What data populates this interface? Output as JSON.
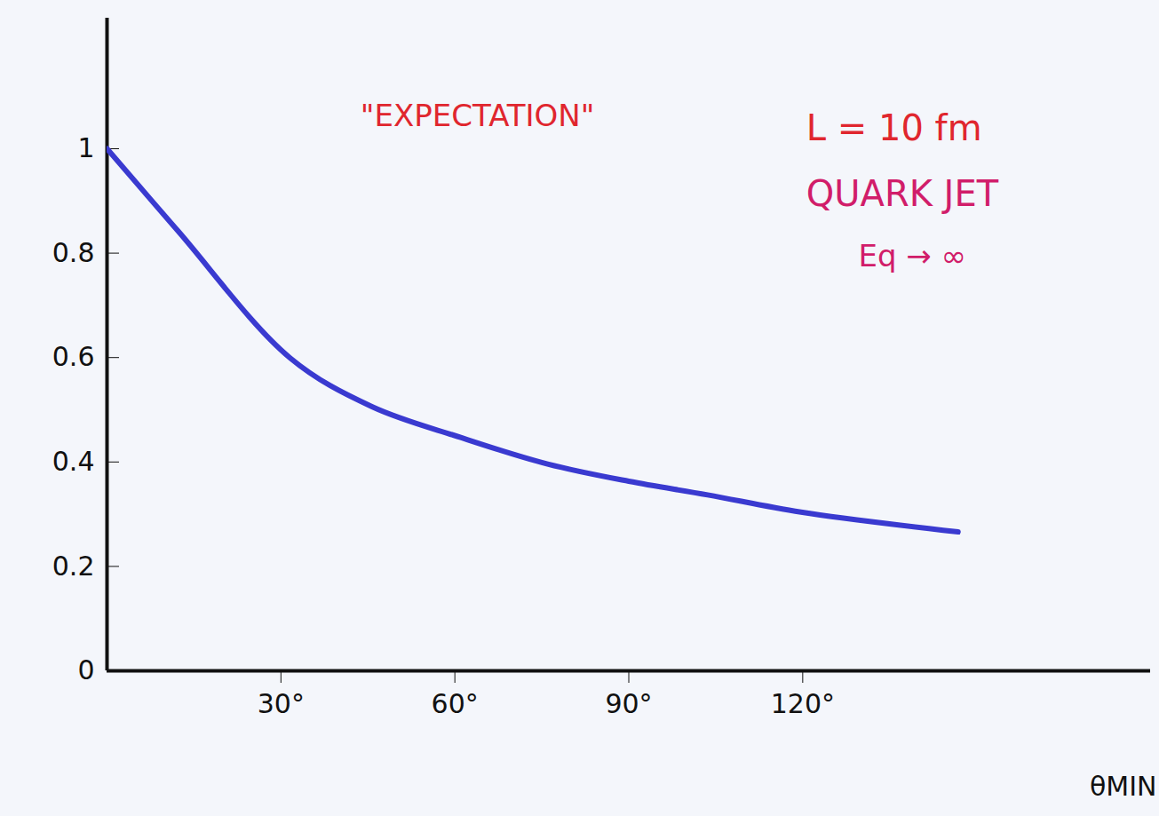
{
  "chart_data": {
    "type": "line",
    "x": [
      0,
      12.2,
      31.5,
      45.7,
      61,
      76,
      90,
      103.6,
      119.7,
      146.8
    ],
    "values": [
      1,
      0.843,
      0.6,
      0.506,
      0.447,
      0.396,
      0.363,
      0.337,
      0.304,
      0.266
    ],
    "color": "#3a3ad0",
    "xlabel": "θMIN",
    "xlim": [
      0,
      180
    ],
    "xticks": [
      {
        "value": 30,
        "label": "30°"
      },
      {
        "value": 60,
        "label": "60°"
      },
      {
        "value": 90,
        "label": "90°"
      },
      {
        "value": 120,
        "label": "120°"
      }
    ],
    "ylim": [
      0,
      1.25
    ],
    "yticks": [
      0,
      0.2,
      0.4,
      0.6,
      0.8,
      1
    ],
    "grid": false,
    "annotations": [
      {
        "text": "\"EXPECTATION\"",
        "color": "#e0262e"
      },
      {
        "text": "L = 10 fm",
        "color": "#e0262e"
      },
      {
        "text": "QUARK JET",
        "color": "#d11d6a"
      },
      {
        "text": "Eq → ∞",
        "color": "#d11d6a"
      }
    ]
  }
}
